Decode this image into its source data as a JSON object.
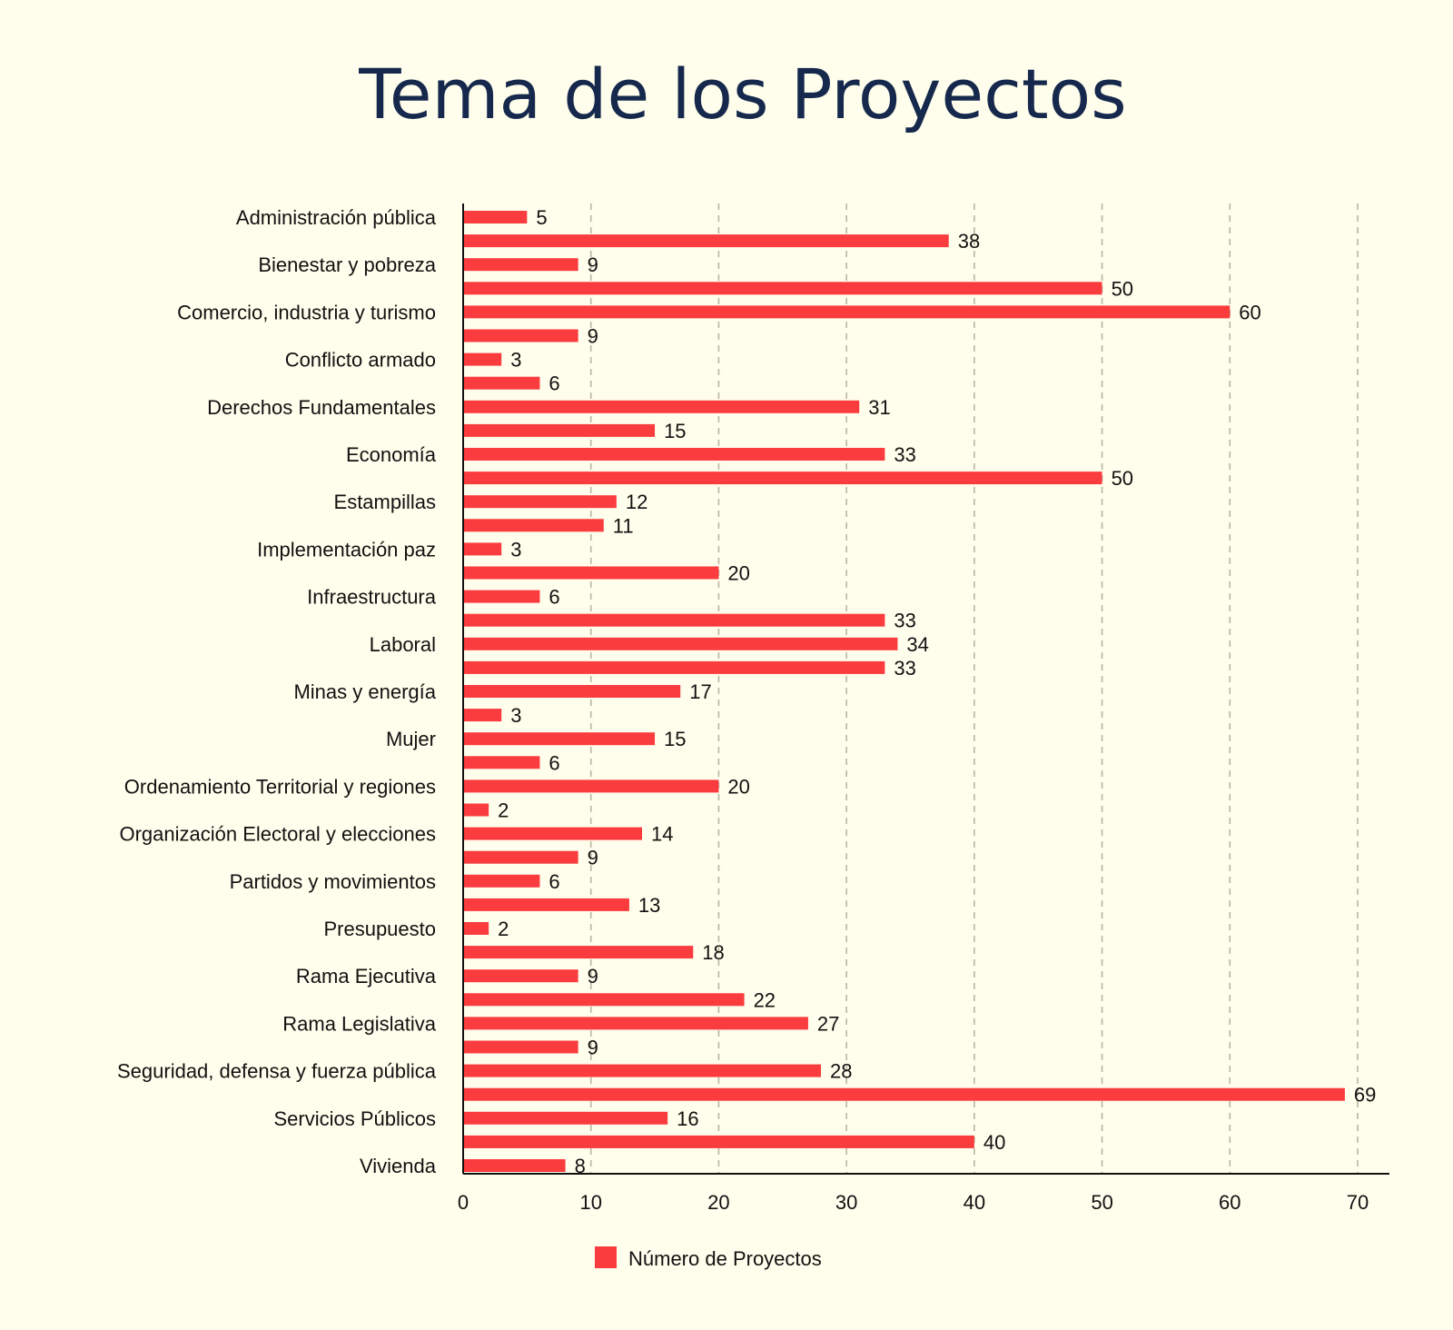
{
  "chart_data": {
    "type": "bar",
    "orientation": "horizontal",
    "title": "Tema de los Proyectos",
    "xlim": [
      0,
      70
    ],
    "x_ticks": [
      0,
      10,
      20,
      30,
      40,
      50,
      60,
      70
    ],
    "grid": "vertical dashed",
    "legend_position": "bottom-center",
    "colors": {
      "bar": "#fb3c3f",
      "title": "#16294d",
      "grid": "#b9b6a2",
      "background": "#fffeec"
    },
    "series": [
      {
        "name": "Número de Proyectos"
      }
    ],
    "rows": [
      {
        "label": "Administración pública",
        "value": 5
      },
      {
        "label": "",
        "value": 38
      },
      {
        "label": "Bienestar y pobreza",
        "value": 9
      },
      {
        "label": "",
        "value": 50
      },
      {
        "label": "Comercio, industria y turismo",
        "value": 60
      },
      {
        "label": "",
        "value": 9
      },
      {
        "label": "Conflicto armado",
        "value": 3
      },
      {
        "label": "",
        "value": 6
      },
      {
        "label": "Derechos Fundamentales",
        "value": 31
      },
      {
        "label": "",
        "value": 15
      },
      {
        "label": "Economía",
        "value": 33
      },
      {
        "label": "",
        "value": 50
      },
      {
        "label": "Estampillas",
        "value": 12
      },
      {
        "label": "",
        "value": 11
      },
      {
        "label": "Implementación paz",
        "value": 3
      },
      {
        "label": "",
        "value": 20
      },
      {
        "label": "Infraestructura",
        "value": 6
      },
      {
        "label": "",
        "value": 33
      },
      {
        "label": "Laboral",
        "value": 34
      },
      {
        "label": "",
        "value": 33
      },
      {
        "label": "Minas y energía",
        "value": 17
      },
      {
        "label": "",
        "value": 3
      },
      {
        "label": "Mujer",
        "value": 15
      },
      {
        "label": "",
        "value": 6
      },
      {
        "label": "Ordenamiento Territorial y regiones",
        "value": 20
      },
      {
        "label": "",
        "value": 2
      },
      {
        "label": "Organización Electoral y elecciones",
        "value": 14
      },
      {
        "label": "",
        "value": 9
      },
      {
        "label": "Partidos y movimientos",
        "value": 6
      },
      {
        "label": "",
        "value": 13
      },
      {
        "label": "Presupuesto",
        "value": 2
      },
      {
        "label": "",
        "value": 18
      },
      {
        "label": "Rama Ejecutiva",
        "value": 9
      },
      {
        "label": "",
        "value": 22
      },
      {
        "label": "Rama Legislativa",
        "value": 27
      },
      {
        "label": "",
        "value": 9
      },
      {
        "label": "Seguridad, defensa y fuerza pública",
        "value": 28
      },
      {
        "label": "",
        "value": 69
      },
      {
        "label": "Servicios Públicos",
        "value": 16
      },
      {
        "label": "",
        "value": 40
      },
      {
        "label": "Vivienda",
        "value": 8
      }
    ]
  }
}
